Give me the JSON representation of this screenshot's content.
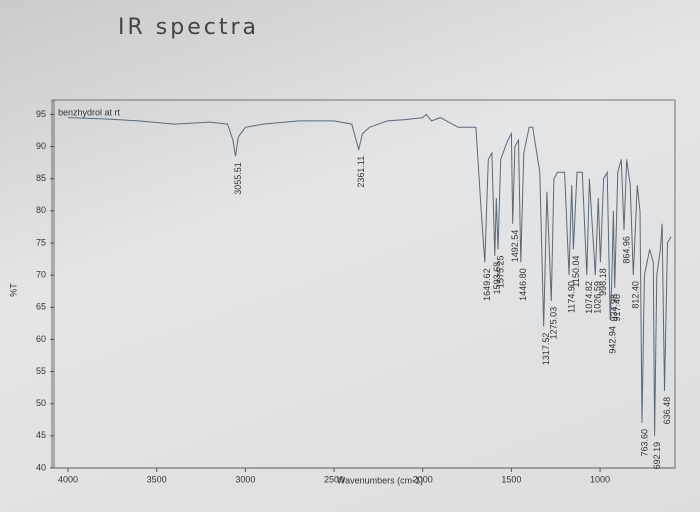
{
  "chart_data": {
    "type": "line",
    "title": "IR spectra",
    "legend_label": "benzhydrol at rt",
    "x_label": "Wavenumbers (cm-1)",
    "y_label": "%T",
    "xlim": [
      4000,
      600
    ],
    "xticks": [
      4000,
      3500,
      3000,
      2500,
      2000,
      1500,
      1000
    ],
    "ylim": [
      40,
      96
    ],
    "yticks": [
      40,
      45,
      50,
      55,
      60,
      65,
      70,
      75,
      80,
      85,
      90,
      95
    ],
    "x": [
      4000,
      3800,
      3600,
      3400,
      3200,
      3100,
      3070,
      3055.51,
      3040,
      3000,
      2900,
      2700,
      2500,
      2400,
      2361.11,
      2340,
      2300,
      2200,
      2100,
      2000,
      1980,
      1950,
      1900,
      1800,
      1700,
      1670,
      1649.62,
      1630,
      1610,
      1593.68,
      1585,
      1575.25,
      1560,
      1520,
      1500,
      1492.54,
      1480,
      1460,
      1446.8,
      1430,
      1400,
      1380,
      1340,
      1317.52,
      1300,
      1275.03,
      1260,
      1240,
      1200,
      1174.9,
      1160,
      1150.04,
      1130,
      1100,
      1074.82,
      1060,
      1026.59,
      1010,
      998.18,
      980,
      960,
      942.94,
      934.98,
      925,
      917.4,
      900,
      880,
      864.96,
      850,
      830,
      812.4,
      790,
      775,
      763.6,
      750,
      720,
      700,
      692.19,
      680,
      660,
      650,
      636.48,
      620,
      600
    ],
    "series": [
      {
        "name": "benzhydrol at rt",
        "color": "#5a6a7a",
        "values": [
          94.5,
          94.3,
          94,
          93.5,
          93.8,
          93.5,
          91,
          88.5,
          91.5,
          93,
          93.5,
          94,
          94,
          93.5,
          89.5,
          92,
          93,
          94,
          94.2,
          94.5,
          95,
          94,
          94.5,
          93,
          93,
          80,
          72,
          88,
          89,
          73,
          82,
          74,
          88,
          91,
          92,
          78,
          90,
          91,
          72,
          89,
          93,
          93,
          86,
          62,
          83,
          66,
          85,
          86,
          86,
          70,
          84,
          74,
          86,
          86,
          70,
          85,
          70,
          82,
          72,
          85,
          86,
          63,
          68,
          80,
          68,
          86,
          88,
          77,
          88,
          84,
          70,
          84,
          80,
          47,
          70,
          74,
          72,
          45,
          70,
          74,
          78,
          52,
          75,
          76
        ]
      }
    ],
    "peaks": [
      3055.51,
      2361.11,
      1649.62,
      1593.68,
      1575.25,
      1492.54,
      1446.8,
      1317.52,
      1275.03,
      1174.9,
      1150.04,
      1074.82,
      1026.59,
      998.18,
      942.94,
      934.98,
      917.4,
      864.96,
      812.4,
      763.6,
      692.19,
      636.48
    ],
    "peak_labels": [
      "3055.51",
      "2361.11",
      "1649.62",
      "1593.68",
      "1575.25",
      "1492.54",
      "1446.80",
      "1317.52",
      "1275.03",
      "1174.90",
      "1150.04",
      "1074.82",
      "1026.59",
      "998.18",
      "942.94",
      "934.98",
      "917.40",
      "864.96",
      "812.40",
      "763.60",
      "692.19",
      "636.48"
    ]
  }
}
